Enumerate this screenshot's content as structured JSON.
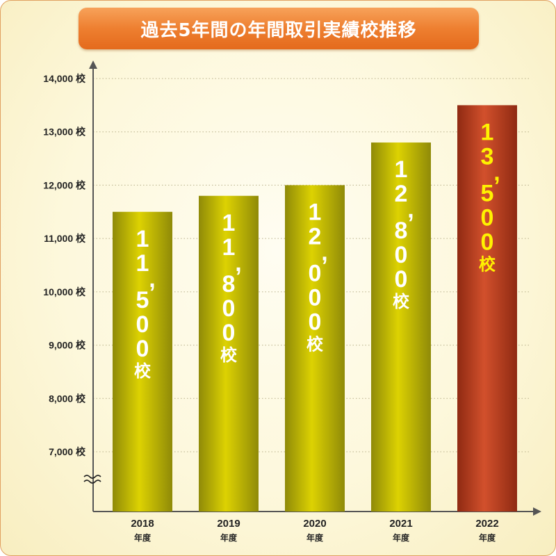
{
  "title": "過去5年間の年間取引実績校推移",
  "colors": {
    "banner": "#ee7f30",
    "bar_gold_dark": "#8f8a08",
    "bar_gold_light": "#ddd202",
    "bar_red_dark": "#8f2a12",
    "bar_red_light": "#d2502c",
    "label_white": "#ffffff",
    "label_yellow": "#fff200",
    "highlight_text": "#e8141a",
    "axis": "#555555",
    "grid": "#b8b08a"
  },
  "chart_data": {
    "type": "bar",
    "unit": "校",
    "y_axis_break": true,
    "ylim": [
      6000,
      14000
    ],
    "yticks": [
      {
        "value": 14000,
        "label": "14,000"
      },
      {
        "value": 13000,
        "label": "13,000"
      },
      {
        "value": 12000,
        "label": "12,000"
      },
      {
        "value": 11000,
        "label": "11,000"
      },
      {
        "value": 10000,
        "label": "10,000"
      },
      {
        "value": 9000,
        "label": "9,000"
      },
      {
        "value": 8000,
        "label": "8,000"
      },
      {
        "value": 7000,
        "label": "7,000"
      }
    ],
    "categories": [
      "2018",
      "2019",
      "2020",
      "2021",
      "2022"
    ],
    "category_suffix": "年度",
    "values": [
      11500,
      11800,
      12000,
      12800,
      13500
    ],
    "value_labels": [
      "11,500",
      "11,800",
      "12,000",
      "12,800",
      "13,500"
    ],
    "highlight_index": 4,
    "grid": true
  }
}
